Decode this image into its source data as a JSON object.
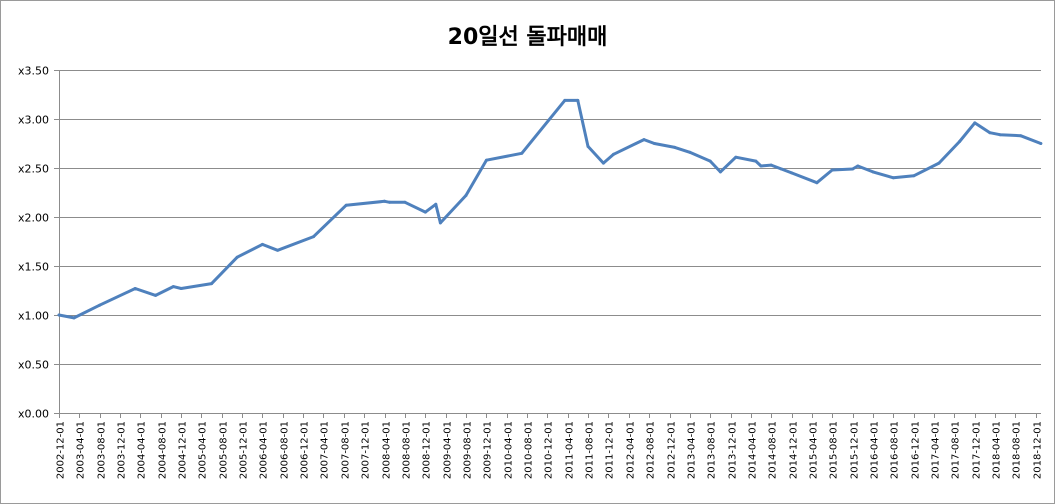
{
  "chart_data": {
    "type": "line",
    "title": "20일선 돌파매매",
    "xlabel": "",
    "ylabel": "",
    "ylim": [
      0,
      3.5
    ],
    "yticks": [
      {
        "value": 0.0,
        "label": "x0.00"
      },
      {
        "value": 0.5,
        "label": "x0.50"
      },
      {
        "value": 1.0,
        "label": "x1.00"
      },
      {
        "value": 1.5,
        "label": "x1.50"
      },
      {
        "value": 2.0,
        "label": "x2.00"
      },
      {
        "value": 2.5,
        "label": "x2.50"
      },
      {
        "value": 3.0,
        "label": "x3.00"
      },
      {
        "value": 3.5,
        "label": "x3.50"
      }
    ],
    "xlim": [
      "2002-12-01",
      "2019-01-01"
    ],
    "xticks": [
      "2002-12-01",
      "2003-04-01",
      "2003-08-01",
      "2003-12-01",
      "2004-04-01",
      "2004-08-01",
      "2004-12-01",
      "2005-04-01",
      "2005-08-01",
      "2005-12-01",
      "2006-04-01",
      "2006-08-01",
      "2006-12-01",
      "2007-04-01",
      "2007-08-01",
      "2007-12-01",
      "2008-04-01",
      "2008-08-01",
      "2008-12-01",
      "2009-04-01",
      "2009-08-01",
      "2009-12-01",
      "2010-04-01",
      "2010-08-01",
      "2010-12-01",
      "2011-04-01",
      "2011-08-01",
      "2011-12-01",
      "2012-04-01",
      "2012-08-01",
      "2012-12-01",
      "2013-04-01",
      "2013-08-01",
      "2013-12-01",
      "2014-04-01",
      "2014-08-01",
      "2014-12-01",
      "2015-04-01",
      "2015-08-01",
      "2015-12-01",
      "2016-04-01",
      "2016-08-01",
      "2016-12-01",
      "2017-04-01",
      "2017-08-01",
      "2017-12-01",
      "2018-04-01",
      "2018-08-01",
      "2018-12-01"
    ],
    "grid": {
      "horizontal": true,
      "vertical": false
    },
    "legend": "none",
    "line_color": "#4f81bd",
    "series": [
      {
        "x": [
          "2002-12-01",
          "2003-03-01",
          "2003-08-01",
          "2004-03-01",
          "2004-07-01",
          "2004-10-15",
          "2004-12-01",
          "2005-06-01",
          "2005-11-01",
          "2006-04-01",
          "2006-07-01",
          "2007-02-01",
          "2007-08-15",
          "2008-04-01",
          "2008-05-01",
          "2008-08-01",
          "2008-12-01",
          "2009-02-01",
          "2009-03-01",
          "2009-08-01",
          "2009-12-01",
          "2010-07-01",
          "2011-03-15",
          "2011-06-01",
          "2011-08-01",
          "2011-11-01",
          "2012-01-01",
          "2012-07-01",
          "2012-09-01",
          "2013-01-01",
          "2013-04-01",
          "2013-08-01",
          "2013-10-01",
          "2014-01-01",
          "2014-05-01",
          "2014-06-01",
          "2014-08-01",
          "2014-10-01",
          "2014-12-01",
          "2015-05-01",
          "2015-08-01",
          "2015-12-01",
          "2016-01-01",
          "2016-04-01",
          "2016-08-01",
          "2016-12-01",
          "2017-05-01",
          "2017-09-01",
          "2017-12-01",
          "2018-03-01",
          "2018-05-01",
          "2018-09-01",
          "2018-12-31"
        ],
        "y": [
          1.0,
          0.97,
          1.1,
          1.27,
          1.2,
          1.29,
          1.27,
          1.32,
          1.59,
          1.72,
          1.66,
          1.8,
          2.12,
          2.16,
          2.15,
          2.15,
          2.05,
          2.13,
          1.94,
          2.22,
          2.58,
          2.65,
          3.19,
          3.19,
          2.72,
          2.55,
          2.64,
          2.79,
          2.75,
          2.71,
          2.66,
          2.57,
          2.46,
          2.61,
          2.57,
          2.52,
          2.53,
          2.49,
          2.45,
          2.35,
          2.48,
          2.49,
          2.52,
          2.46,
          2.4,
          2.42,
          2.55,
          2.77,
          2.96,
          2.86,
          2.84,
          2.83,
          2.75
        ]
      }
    ]
  }
}
